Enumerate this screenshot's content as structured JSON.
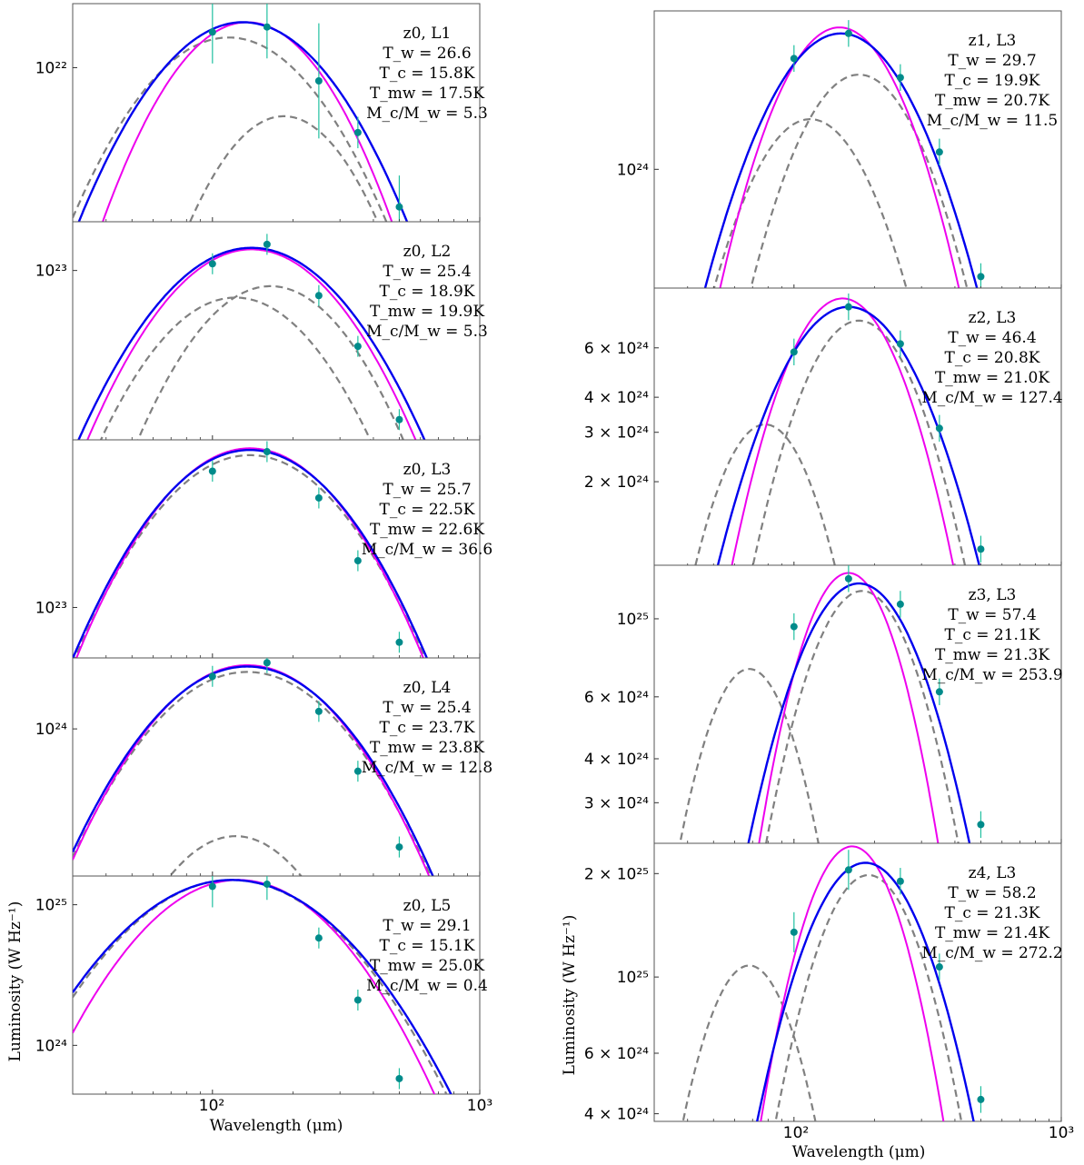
{
  "figure": {
    "left_column": {
      "ylabel": "Luminosity (W Hz⁻¹)",
      "xlabel": "Wavelength (μm)",
      "xtick_labels": [
        "10²",
        "10³"
      ]
    },
    "right_column": {
      "ylabel": "Luminosity (W Hz⁻¹)",
      "xlabel": "Wavelength (μm)",
      "xtick_labels": [
        "10²",
        "10³"
      ]
    },
    "colors": {
      "total_fit": "#0000ee",
      "single_fit": "#ee00ee",
      "components": "#808080",
      "data_points": "#008b8b",
      "error_bars": "#20c0a0"
    }
  },
  "chart_data": [
    {
      "type": "line",
      "column": "left",
      "row": 0,
      "label": "z0, L1",
      "Tw": "T_w = 26.6",
      "Tc": "T_c = 15.8K",
      "Tmw": "T_mw = 17.5K",
      "ratio": "M_c/M_w = 5.3",
      "ytick_label": "10²²",
      "ytick_value": 1e+22,
      "ylim": [
        1.5e+21,
        2.2e+22
      ],
      "xlim": [
        30,
        1000
      ],
      "yscale": "log",
      "xscale": "log",
      "total": {
        "peak_wl": 130,
        "peak": 1.75e+22,
        "width": 0.42
      },
      "single": {
        "peak_wl": 135,
        "peak": 1.75e+22,
        "width": 0.37
      },
      "comp1": {
        "peak_wl": 115,
        "peak": 1.45e+22,
        "width": 0.42
      },
      "comp2": {
        "peak_wl": 185,
        "peak": 5.5e+21,
        "width": 0.33
      },
      "points": [
        [
          100,
          1.55e+22
        ],
        [
          160,
          1.65e+22
        ],
        [
          250,
          8.5e+21
        ],
        [
          350,
          4.5e+21
        ],
        [
          500,
          1.8e+21
        ]
      ],
      "errors": [
        0.06,
        0.06,
        0.11,
        0.03,
        0.06
      ]
    },
    {
      "type": "line",
      "column": "left",
      "row": 1,
      "label": "z0, L2",
      "Tw": "T_w = 25.4",
      "Tc": "T_c = 18.9K",
      "Tmw": "T_mw = 19.9K",
      "ratio": "M_c/M_w = 5.3",
      "ytick_label": "10²³",
      "ytick_value": 1e+23,
      "ylim": [
        9e+21,
        2e+23
      ],
      "xlim": [
        30,
        1000
      ],
      "yscale": "log",
      "xscale": "log",
      "total": {
        "peak_wl": 140,
        "peak": 1.38e+23,
        "width": 0.42
      },
      "single": {
        "peak_wl": 140,
        "peak": 1.35e+23,
        "width": 0.4
      },
      "comp1": {
        "peak_wl": 122,
        "peak": 6.8e+22,
        "width": 0.38
      },
      "comp2": {
        "peak_wl": 165,
        "peak": 8e+22,
        "width": 0.36
      },
      "points": [
        [
          100,
          1.1e+23
        ],
        [
          160,
          1.45e+23
        ],
        [
          250,
          7e+22
        ],
        [
          350,
          3.4e+22
        ],
        [
          500,
          1.2e+22
        ]
      ],
      "errors": [
        0.02,
        0.02,
        0.02,
        0.02,
        0.02
      ]
    },
    {
      "type": "line",
      "column": "left",
      "row": 2,
      "label": "z0, L3",
      "Tw": "T_w = 25.7",
      "Tc": "T_c = 22.5K",
      "Tmw": "T_mw = 22.6K",
      "ratio": "M_c/M_w = 36.6",
      "ytick_label": "10²³",
      "ytick_value": 1e+23,
      "ylim": [
        5e+22,
        1e+24
      ],
      "xlim": [
        30,
        1000
      ],
      "yscale": "log",
      "xscale": "log",
      "total": {
        "peak_wl": 138,
        "peak": 8.7e+23,
        "width": 0.42
      },
      "single": {
        "peak_wl": 138,
        "peak": 8.9e+23,
        "width": 0.41
      },
      "comp1": {
        "peak_wl": 138,
        "peak": 8.1e+23,
        "width": 0.42
      },
      "comp2": null,
      "points": [
        [
          100,
          6.5e+23
        ],
        [
          160,
          8.5e+23
        ],
        [
          250,
          4.5e+23
        ],
        [
          350,
          1.9e+23
        ],
        [
          500,
          6.2e+22
        ]
      ],
      "errors": [
        0.02,
        0.02,
        0.02,
        0.02,
        0.02
      ]
    },
    {
      "type": "line",
      "column": "left",
      "row": 3,
      "label": "z0, L4",
      "Tw": "T_w = 25.4",
      "Tc": "T_c = 23.7K",
      "Tmw": "T_mw = 23.8K",
      "ratio": "M_c/M_w = 12.8",
      "ytick_label": "10²⁴",
      "ytick_value": 1e+24,
      "ylim": [
        1.1e+23,
        2.9e+24
      ],
      "xlim": [
        30,
        1000
      ],
      "yscale": "log",
      "xscale": "log",
      "total": {
        "peak_wl": 135,
        "peak": 2.55e+24,
        "width": 0.42
      },
      "single": {
        "peak_wl": 135,
        "peak": 2.6e+24,
        "width": 0.41
      },
      "comp1": {
        "peak_wl": 135,
        "peak": 2.35e+24,
        "width": 0.42
      },
      "comp2": {
        "peak_wl": 122,
        "peak": 2e+23,
        "width": 0.34
      },
      "points": [
        [
          100,
          2.2e+24
        ],
        [
          160,
          2.7e+24
        ],
        [
          250,
          1.3e+24
        ],
        [
          350,
          5.3e+23
        ],
        [
          500,
          1.7e+23
        ]
      ],
      "errors": [
        0.02,
        0.02,
        0.02,
        0.02,
        0.02
      ]
    },
    {
      "type": "line",
      "column": "left",
      "row": 4,
      "label": "z0, L5",
      "Tw": "T_w = 29.1",
      "Tc": "T_c = 15.1K",
      "Tmw": "T_mw = 25.0K",
      "ratio": "M_c/M_w = 0.4",
      "ytick_label": "10²⁵",
      "ytick_value": 1e+25,
      "ylim": [
        4.5e+23,
        1.6e+25
      ],
      "xlim": [
        30,
        1000
      ],
      "yscale": "log",
      "xscale": "log",
      "ytick2_label": "10²⁴",
      "ytick2_value": 1e+24,
      "total": {
        "peak_wl": 118,
        "peak": 1.5e+25,
        "width": 0.47
      },
      "single": {
        "peak_wl": 125,
        "peak": 1.5e+25,
        "width": 0.42
      },
      "comp1": {
        "peak_wl": 118,
        "peak": 1.5e+25,
        "width": 0.46
      },
      "comp2": null,
      "points": [
        [
          100,
          1.35e+25
        ],
        [
          160,
          1.4e+25
        ],
        [
          250,
          5.8e+24
        ],
        [
          350,
          2.1e+24
        ],
        [
          500,
          5.8e+23
        ]
      ],
      "errors": [
        0.04,
        0.03,
        0.02,
        0.02,
        0.02
      ]
    },
    {
      "type": "line",
      "column": "right",
      "row": 0,
      "label": "z1, L3",
      "Tw": "T_w = 29.7",
      "Tc": "T_c = 19.9K",
      "Tmw": "T_mw = 20.7K",
      "ratio": "M_c/M_w = 11.5",
      "ytick_label": "10²⁴",
      "ytick_value": 1e+24,
      "ylim": [
        3.8e+23,
        3.6e+24
      ],
      "xlim": [
        30,
        1000
      ],
      "yscale": "log",
      "xscale": "log",
      "total": {
        "peak_wl": 150,
        "peak": 3e+24,
        "width": 0.38
      },
      "single": {
        "peak_wl": 148,
        "peak": 3.15e+24,
        "width": 0.33
      },
      "comp1": {
        "peak_wl": 115,
        "peak": 1.5e+24,
        "width": 0.33
      },
      "comp2": {
        "peak_wl": 175,
        "peak": 2.15e+24,
        "width": 0.33
      },
      "points": [
        [
          100,
          2.45e+24
        ],
        [
          160,
          3e+24
        ],
        [
          250,
          2.1e+24
        ],
        [
          350,
          1.15e+24
        ],
        [
          500,
          4.2e+23
        ]
      ],
      "errors": [
        0.02,
        0.02,
        0.02,
        0.02,
        0.02
      ]
    },
    {
      "type": "line",
      "column": "right",
      "row": 1,
      "label": "z2, L3",
      "Tw": "T_w = 46.4",
      "Tc": "T_c = 20.8K",
      "Tmw": "T_mw = 21.0K",
      "ratio": "M_c/M_w = 127.4",
      "yticks": [
        [
          "2 × 10²⁴",
          2e+24
        ],
        [
          "3 × 10²⁴",
          3e+24
        ],
        [
          "4 × 10²⁴",
          4e+24
        ],
        [
          "6 × 10²⁴",
          6e+24
        ]
      ],
      "ylim": [
        1e+24,
        9.8e+24
      ],
      "xlim": [
        30,
        1000
      ],
      "yscale": "log",
      "xscale": "log",
      "total": {
        "peak_wl": 160,
        "peak": 8.4e+24,
        "width": 0.36
      },
      "single": {
        "peak_wl": 152,
        "peak": 9e+24,
        "width": 0.3
      },
      "comp1": {
        "peak_wl": 78,
        "peak": 3.2e+24,
        "width": 0.26
      },
      "comp2": {
        "peak_wl": 175,
        "peak": 7.5e+24,
        "width": 0.3
      },
      "points": [
        [
          100,
          5.8e+24
        ],
        [
          160,
          8.4e+24
        ],
        [
          250,
          6.2e+24
        ],
        [
          350,
          3.1e+24
        ],
        [
          500,
          1.15e+24
        ]
      ],
      "errors": [
        0.02,
        0.02,
        0.02,
        0.02,
        0.02
      ]
    },
    {
      "type": "line",
      "column": "right",
      "row": 2,
      "label": "z3, L3",
      "Tw": "T_w = 57.4",
      "Tc": "T_c = 21.1K",
      "Tmw": "T_mw = 21.3K",
      "ratio": "M_c/M_w = 253.9",
      "yticks": [
        [
          "3 × 10²⁴",
          3e+24
        ],
        [
          "4 × 10²⁴",
          4e+24
        ],
        [
          "6 × 10²⁴",
          6e+24
        ],
        [
          "10²⁵",
          1e+25
        ]
      ],
      "ylim": [
        2.3e+24,
        1.42e+25
      ],
      "xlim": [
        30,
        1000
      ],
      "yscale": "log",
      "xscale": "log",
      "total": {
        "peak_wl": 175,
        "peak": 1.26e+25,
        "width": 0.34
      },
      "single": {
        "peak_wl": 160,
        "peak": 1.35e+25,
        "width": 0.27
      },
      "comp1": {
        "peak_wl": 68,
        "peak": 7.2e+24,
        "width": 0.26
      },
      "comp2": {
        "peak_wl": 180,
        "peak": 1.2e+25,
        "width": 0.3
      },
      "points": [
        [
          100,
          9.5e+24
        ],
        [
          160,
          1.3e+25
        ],
        [
          250,
          1.1e+25
        ],
        [
          350,
          6.2e+24
        ],
        [
          500,
          2.6e+24
        ]
      ],
      "errors": [
        0.02,
        0.02,
        0.02,
        0.02,
        0.02
      ]
    },
    {
      "type": "line",
      "column": "right",
      "row": 3,
      "label": "z4, L3",
      "Tw": "T_w = 58.2",
      "Tc": "T_c = 21.3K",
      "Tmw": "T_mw = 21.4K",
      "ratio": "M_c/M_w = 272.2",
      "yticks": [
        [
          "4 × 10²⁴",
          4e+24
        ],
        [
          "6 × 10²⁴",
          6e+24
        ],
        [
          "10²⁵",
          1e+25
        ],
        [
          "2 × 10²⁵",
          2e+25
        ]
      ],
      "ylim": [
        3.8e+24,
        2.45e+25
      ],
      "xlim": [
        30,
        1000
      ],
      "yscale": "log",
      "xscale": "log",
      "total": {
        "peak_wl": 185,
        "peak": 2.15e+25,
        "width": 0.33
      },
      "single": {
        "peak_wl": 165,
        "peak": 2.4e+25,
        "width": 0.27
      },
      "comp1": {
        "peak_wl": 68,
        "peak": 1.08e+25,
        "width": 0.26
      },
      "comp2": {
        "peak_wl": 190,
        "peak": 1.98e+25,
        "width": 0.29
      },
      "points": [
        [
          100,
          1.35e+25
        ],
        [
          160,
          2.05e+25
        ],
        [
          250,
          1.9e+25
        ],
        [
          350,
          1.07e+25
        ],
        [
          500,
          4.4e+24
        ]
      ],
      "errors": [
        0.03,
        0.03,
        0.02,
        0.02,
        0.02
      ]
    }
  ]
}
